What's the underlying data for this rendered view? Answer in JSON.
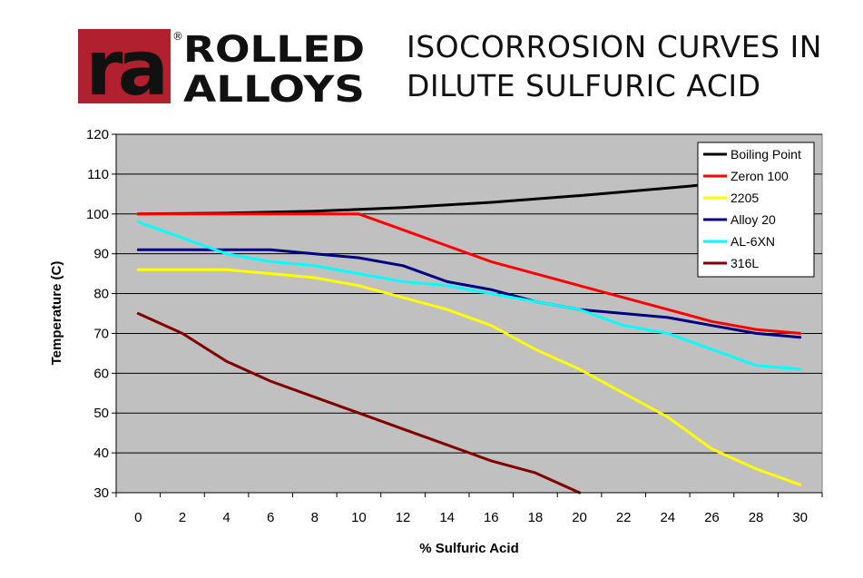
{
  "logo": {
    "monogram": "ra",
    "registered": "®",
    "line1": "ROLLED",
    "line2": "ALLOYS"
  },
  "header": {
    "title_line1": "ISOCORROSION CURVES IN",
    "title_line2": "DILUTE SULFURIC ACID"
  },
  "colors": {
    "plot_bg": "#c0c0c0",
    "logo_red": "#b0202e",
    "logo_black": "#111111"
  },
  "chart_data": {
    "type": "line",
    "xlabel": "% Sulfuric Acid",
    "ylabel": "Temperature (C)",
    "xlim": [
      -1,
      31
    ],
    "ylim": [
      30,
      120
    ],
    "xticks": [
      0,
      2,
      4,
      6,
      8,
      10,
      12,
      14,
      16,
      18,
      20,
      22,
      24,
      26,
      28,
      30
    ],
    "yticks": [
      30,
      40,
      50,
      60,
      70,
      80,
      90,
      100,
      110,
      120
    ],
    "grid": "horizontal",
    "legend": "top-right",
    "series": [
      {
        "name": "Boiling Point",
        "color": "#000000",
        "x": [
          0,
          4,
          8,
          12,
          16,
          20,
          24,
          26,
          27.5
        ],
        "y": [
          100,
          100.2,
          100.7,
          101.6,
          102.9,
          104.6,
          106.5,
          107.5,
          108.2
        ]
      },
      {
        "name": "Zeron 100",
        "color": "#ff0000",
        "x": [
          0,
          2,
          4,
          6,
          8,
          10,
          12,
          14,
          16,
          18,
          20,
          22,
          24,
          26,
          28,
          30
        ],
        "y": [
          100,
          100,
          100,
          100,
          100,
          100,
          96,
          92,
          88,
          85,
          82,
          79,
          76,
          73,
          71,
          70
        ]
      },
      {
        "name": "2205",
        "color": "#ffff00",
        "x": [
          0,
          2,
          4,
          6,
          8,
          10,
          12,
          14,
          16,
          18,
          20,
          22,
          24,
          26,
          28,
          30
        ],
        "y": [
          86,
          86,
          86,
          85,
          84,
          82,
          79,
          76,
          72,
          66,
          61,
          55,
          49,
          41,
          36,
          32
        ]
      },
      {
        "name": "Alloy 20",
        "color": "#000080",
        "x": [
          0,
          2,
          4,
          6,
          8,
          10,
          12,
          14,
          16,
          18,
          20,
          22,
          24,
          26,
          28,
          30
        ],
        "y": [
          91,
          91,
          91,
          91,
          90,
          89,
          87,
          83,
          81,
          78,
          76,
          75,
          74,
          72,
          70,
          69
        ]
      },
      {
        "name": "AL-6XN",
        "color": "#00ffff",
        "x": [
          0,
          2,
          4,
          6,
          8,
          10,
          12,
          14,
          16,
          18,
          20,
          22,
          24,
          26,
          28,
          30
        ],
        "y": [
          98,
          94,
          90,
          88,
          87,
          85,
          83,
          82,
          80,
          78,
          76,
          72,
          70,
          66,
          62,
          61
        ]
      },
      {
        "name": "316L",
        "color": "#800000",
        "x": [
          0,
          2,
          4,
          6,
          8,
          10,
          12,
          14,
          16,
          18,
          20
        ],
        "y": [
          75,
          70,
          63,
          58,
          54,
          50,
          46,
          42,
          38,
          35,
          30
        ]
      }
    ]
  }
}
